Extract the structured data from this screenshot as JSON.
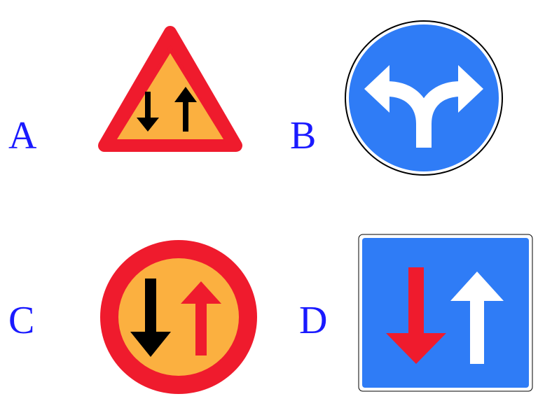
{
  "options": [
    {
      "letter": "A",
      "icon": "priority-over-oncoming-warning-triangle"
    },
    {
      "letter": "B",
      "icon": "turn-left-or-right-mandatory-sign"
    },
    {
      "letter": "C",
      "icon": "give-way-to-oncoming-traffic-sign"
    },
    {
      "letter": "D",
      "icon": "priority-over-oncoming-traffic-sign"
    }
  ],
  "colors": {
    "label": "#1a1aff",
    "red": "#ef1b2d",
    "amber": "#fbb040",
    "blue": "#2f7cf6",
    "black": "#000000",
    "white": "#ffffff"
  }
}
